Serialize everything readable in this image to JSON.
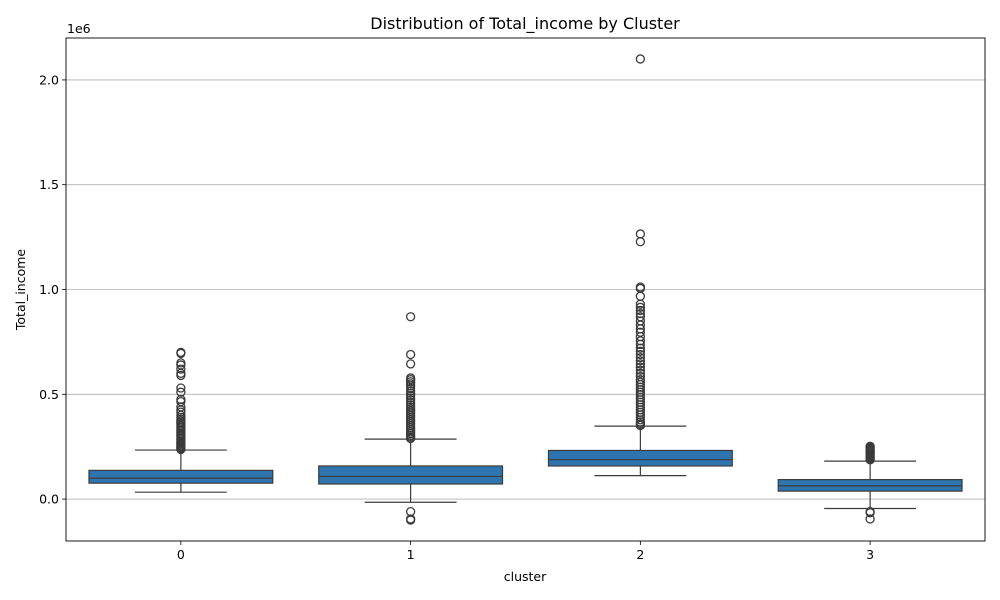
{
  "chart_data": {
    "type": "box",
    "title": "Distribution of Total_income by Cluster",
    "xlabel": "cluster",
    "ylabel": "Total_income",
    "y_offset_label": "1e6",
    "ylim": [
      -200000,
      2200000
    ],
    "grid": "horizontal",
    "color": "#2e75b0",
    "edge_color": "#3b3b3b",
    "y_ticks": [
      {
        "value": 0,
        "label": "0.0"
      },
      {
        "value": 500000,
        "label": "0.5"
      },
      {
        "value": 1000000,
        "label": "1.0"
      },
      {
        "value": 1500000,
        "label": "1.5"
      },
      {
        "value": 2000000,
        "label": "2.0"
      }
    ],
    "categories": [
      "0",
      "1",
      "2",
      "3"
    ],
    "series": [
      {
        "category": "0",
        "whisker_low": 33000,
        "q1": 76000,
        "median": 100000,
        "q3": 137000,
        "whisker_high": 234000,
        "outliers": [
          700000,
          695000,
          650000,
          640000,
          620000,
          600000,
          590000,
          530000,
          510000,
          475000,
          465000,
          440000,
          425000,
          415000,
          400000,
          390000,
          380000,
          372000,
          365000,
          358000,
          350000,
          342000,
          335000,
          328000,
          320000,
          312000,
          305000,
          298000,
          290000,
          283000,
          276000,
          270000,
          264000,
          258000,
          252000,
          246000,
          241000,
          237000
        ]
      },
      {
        "category": "1",
        "whisker_low": -15000,
        "q1": 72000,
        "median": 108000,
        "q3": 158000,
        "whisker_high": 286000,
        "outliers": [
          -60000,
          -95000,
          -100000,
          870000,
          690000,
          645000,
          578000,
          570000,
          560000,
          550000,
          540000,
          528000,
          516000,
          505000,
          494000,
          483000,
          472000,
          461000,
          450000,
          440000,
          430000,
          420000,
          410000,
          400000,
          390000,
          380000,
          370000,
          360000,
          350000,
          340000,
          330000,
          320000,
          312000,
          304000,
          296000,
          289000
        ]
      },
      {
        "category": "2",
        "whisker_low": 112000,
        "q1": 158000,
        "median": 188000,
        "q3": 232000,
        "whisker_high": 348000,
        "outliers": [
          2100000,
          1265000,
          1228000,
          1012000,
          1005000,
          968000,
          930000,
          915000,
          900000,
          885000,
          870000,
          850000,
          830000,
          812000,
          796000,
          775000,
          755000,
          738000,
          720000,
          705000,
          690000,
          675000,
          660000,
          645000,
          630000,
          615000,
          600000,
          585000,
          570000,
          558000,
          546000,
          534000,
          522000,
          510000,
          498000,
          486000,
          474000,
          462000,
          450000,
          438000,
          426000,
          414000,
          402000,
          390000,
          378000,
          368000,
          358000,
          351000
        ]
      },
      {
        "category": "3",
        "whisker_low": -45000,
        "q1": 38000,
        "median": 63000,
        "q3": 93000,
        "whisker_high": 181000,
        "outliers": [
          -60000,
          -65000,
          -95000,
          252000,
          247000,
          242000,
          237000,
          232000,
          227000,
          222000,
          217000,
          212000,
          207000,
          202000,
          197000,
          192000,
          187000
        ]
      }
    ]
  }
}
